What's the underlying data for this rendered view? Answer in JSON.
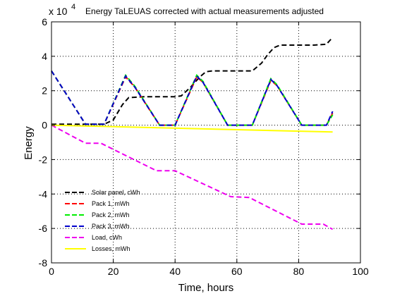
{
  "chart_data": {
    "type": "line",
    "title": "Energy TaLEUAS corrected with actual measurements adjusted",
    "xlabel": "Time, hours",
    "ylabel": "Energy",
    "y_multiplier_label": "x 10",
    "y_multiplier_exp": "4",
    "xlim": [
      0,
      100
    ],
    "ylim": [
      -8,
      6
    ],
    "x_ticks": [
      0,
      20,
      40,
      60,
      80,
      100
    ],
    "y_ticks": [
      -8,
      -6,
      -4,
      -2,
      0,
      2,
      4,
      6
    ],
    "grid": true,
    "legend_position": "bottom-left",
    "series": [
      {
        "name": "Solar panel, cWh",
        "color": "#000000",
        "dash": "dashed",
        "points": [
          [
            0,
            0.05
          ],
          [
            17,
            0.05
          ],
          [
            20,
            0.3
          ],
          [
            23,
            1.2
          ],
          [
            25,
            1.6
          ],
          [
            30,
            1.65
          ],
          [
            40,
            1.65
          ],
          [
            42,
            1.7
          ],
          [
            45,
            2.2
          ],
          [
            48,
            2.8
          ],
          [
            50,
            3.1
          ],
          [
            52,
            3.15
          ],
          [
            65,
            3.15
          ],
          [
            68,
            3.6
          ],
          [
            70,
            4.1
          ],
          [
            72,
            4.5
          ],
          [
            74,
            4.65
          ],
          [
            85,
            4.65
          ],
          [
            89,
            4.7
          ],
          [
            91,
            5.1
          ]
        ]
      },
      {
        "name": "Pack 1, mWh",
        "color": "#ff0000",
        "dash": "dashed",
        "points": [
          [
            0,
            3.15
          ],
          [
            11,
            0.05
          ],
          [
            17,
            0.05
          ],
          [
            24,
            2.8
          ],
          [
            27,
            2.2
          ],
          [
            35,
            0
          ],
          [
            40,
            0
          ],
          [
            47,
            2.8
          ],
          [
            49,
            2.5
          ],
          [
            57,
            0
          ],
          [
            65,
            0
          ],
          [
            71,
            2.6
          ],
          [
            73,
            2.3
          ],
          [
            81,
            0
          ],
          [
            89,
            0
          ],
          [
            91,
            0.7
          ]
        ]
      },
      {
        "name": "Pack 2, mWh",
        "color": "#00ee00",
        "dash": "dashed",
        "points": [
          [
            0,
            3.15
          ],
          [
            11,
            0.05
          ],
          [
            17,
            0.05
          ],
          [
            24,
            2.9
          ],
          [
            27,
            2.25
          ],
          [
            35,
            0
          ],
          [
            40,
            0
          ],
          [
            47,
            2.9
          ],
          [
            49,
            2.55
          ],
          [
            57,
            0
          ],
          [
            65,
            0
          ],
          [
            71,
            2.7
          ],
          [
            73,
            2.35
          ],
          [
            81,
            0
          ],
          [
            89,
            0
          ],
          [
            91,
            0.6
          ]
        ]
      },
      {
        "name": "Pack 3, mWh",
        "color": "#0000cc",
        "dash": "dashed",
        "points": [
          [
            0,
            3.15
          ],
          [
            11,
            0.05
          ],
          [
            17,
            0.05
          ],
          [
            24,
            2.85
          ],
          [
            27,
            2.2
          ],
          [
            35,
            0
          ],
          [
            40,
            0
          ],
          [
            47,
            2.85
          ],
          [
            49,
            2.5
          ],
          [
            57,
            0
          ],
          [
            65,
            0
          ],
          [
            71,
            2.65
          ],
          [
            73,
            2.3
          ],
          [
            81,
            0
          ],
          [
            89,
            0
          ],
          [
            91,
            0.8
          ]
        ]
      },
      {
        "name": "Load, cWh",
        "color": "#ee00ee",
        "dash": "dashed",
        "points": [
          [
            0,
            0
          ],
          [
            11,
            -1.05
          ],
          [
            16,
            -1.05
          ],
          [
            34,
            -2.65
          ],
          [
            40,
            -2.65
          ],
          [
            58,
            -4.15
          ],
          [
            64,
            -4.2
          ],
          [
            81,
            -5.75
          ],
          [
            88,
            -5.75
          ],
          [
            91,
            -6.05
          ]
        ]
      },
      {
        "name": "Losses, mWh",
        "color": "#ffff00",
        "dash": "solid",
        "points": [
          [
            0,
            0
          ],
          [
            91,
            -0.4
          ]
        ]
      }
    ]
  }
}
